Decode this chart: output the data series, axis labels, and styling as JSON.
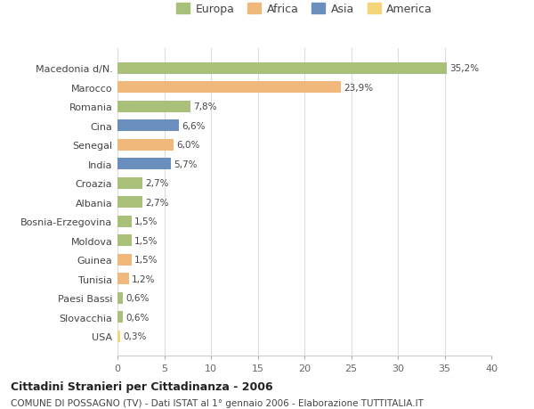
{
  "categories": [
    "Macedonia d/N.",
    "Marocco",
    "Romania",
    "Cina",
    "Senegal",
    "India",
    "Croazia",
    "Albania",
    "Bosnia-Erzegovina",
    "Moldova",
    "Guinea",
    "Tunisia",
    "Paesi Bassi",
    "Slovacchia",
    "USA"
  ],
  "values": [
    35.2,
    23.9,
    7.8,
    6.6,
    6.0,
    5.7,
    2.7,
    2.7,
    1.5,
    1.5,
    1.5,
    1.2,
    0.6,
    0.6,
    0.3
  ],
  "labels": [
    "35,2%",
    "23,9%",
    "7,8%",
    "6,6%",
    "6,0%",
    "5,7%",
    "2,7%",
    "2,7%",
    "1,5%",
    "1,5%",
    "1,5%",
    "1,2%",
    "0,6%",
    "0,6%",
    "0,3%"
  ],
  "continents": [
    "Europa",
    "Africa",
    "Europa",
    "Asia",
    "Africa",
    "Asia",
    "Europa",
    "Europa",
    "Europa",
    "Europa",
    "Africa",
    "Africa",
    "Europa",
    "Europa",
    "America"
  ],
  "continent_colors": {
    "Europa": "#a8c07a",
    "Africa": "#f0b87a",
    "Asia": "#6a8fbf",
    "America": "#f5d47a"
  },
  "legend_order": [
    "Europa",
    "Africa",
    "Asia",
    "America"
  ],
  "title": "Cittadini Stranieri per Cittadinanza - 2006",
  "subtitle": "COMUNE DI POSSAGNO (TV) - Dati ISTAT al 1° gennaio 2006 - Elaborazione TUTTITALIA.IT",
  "xlim": [
    0,
    40
  ],
  "xticks": [
    0,
    5,
    10,
    15,
    20,
    25,
    30,
    35,
    40
  ],
  "background_color": "#ffffff",
  "grid_color": "#dddddd",
  "bar_height": 0.6
}
